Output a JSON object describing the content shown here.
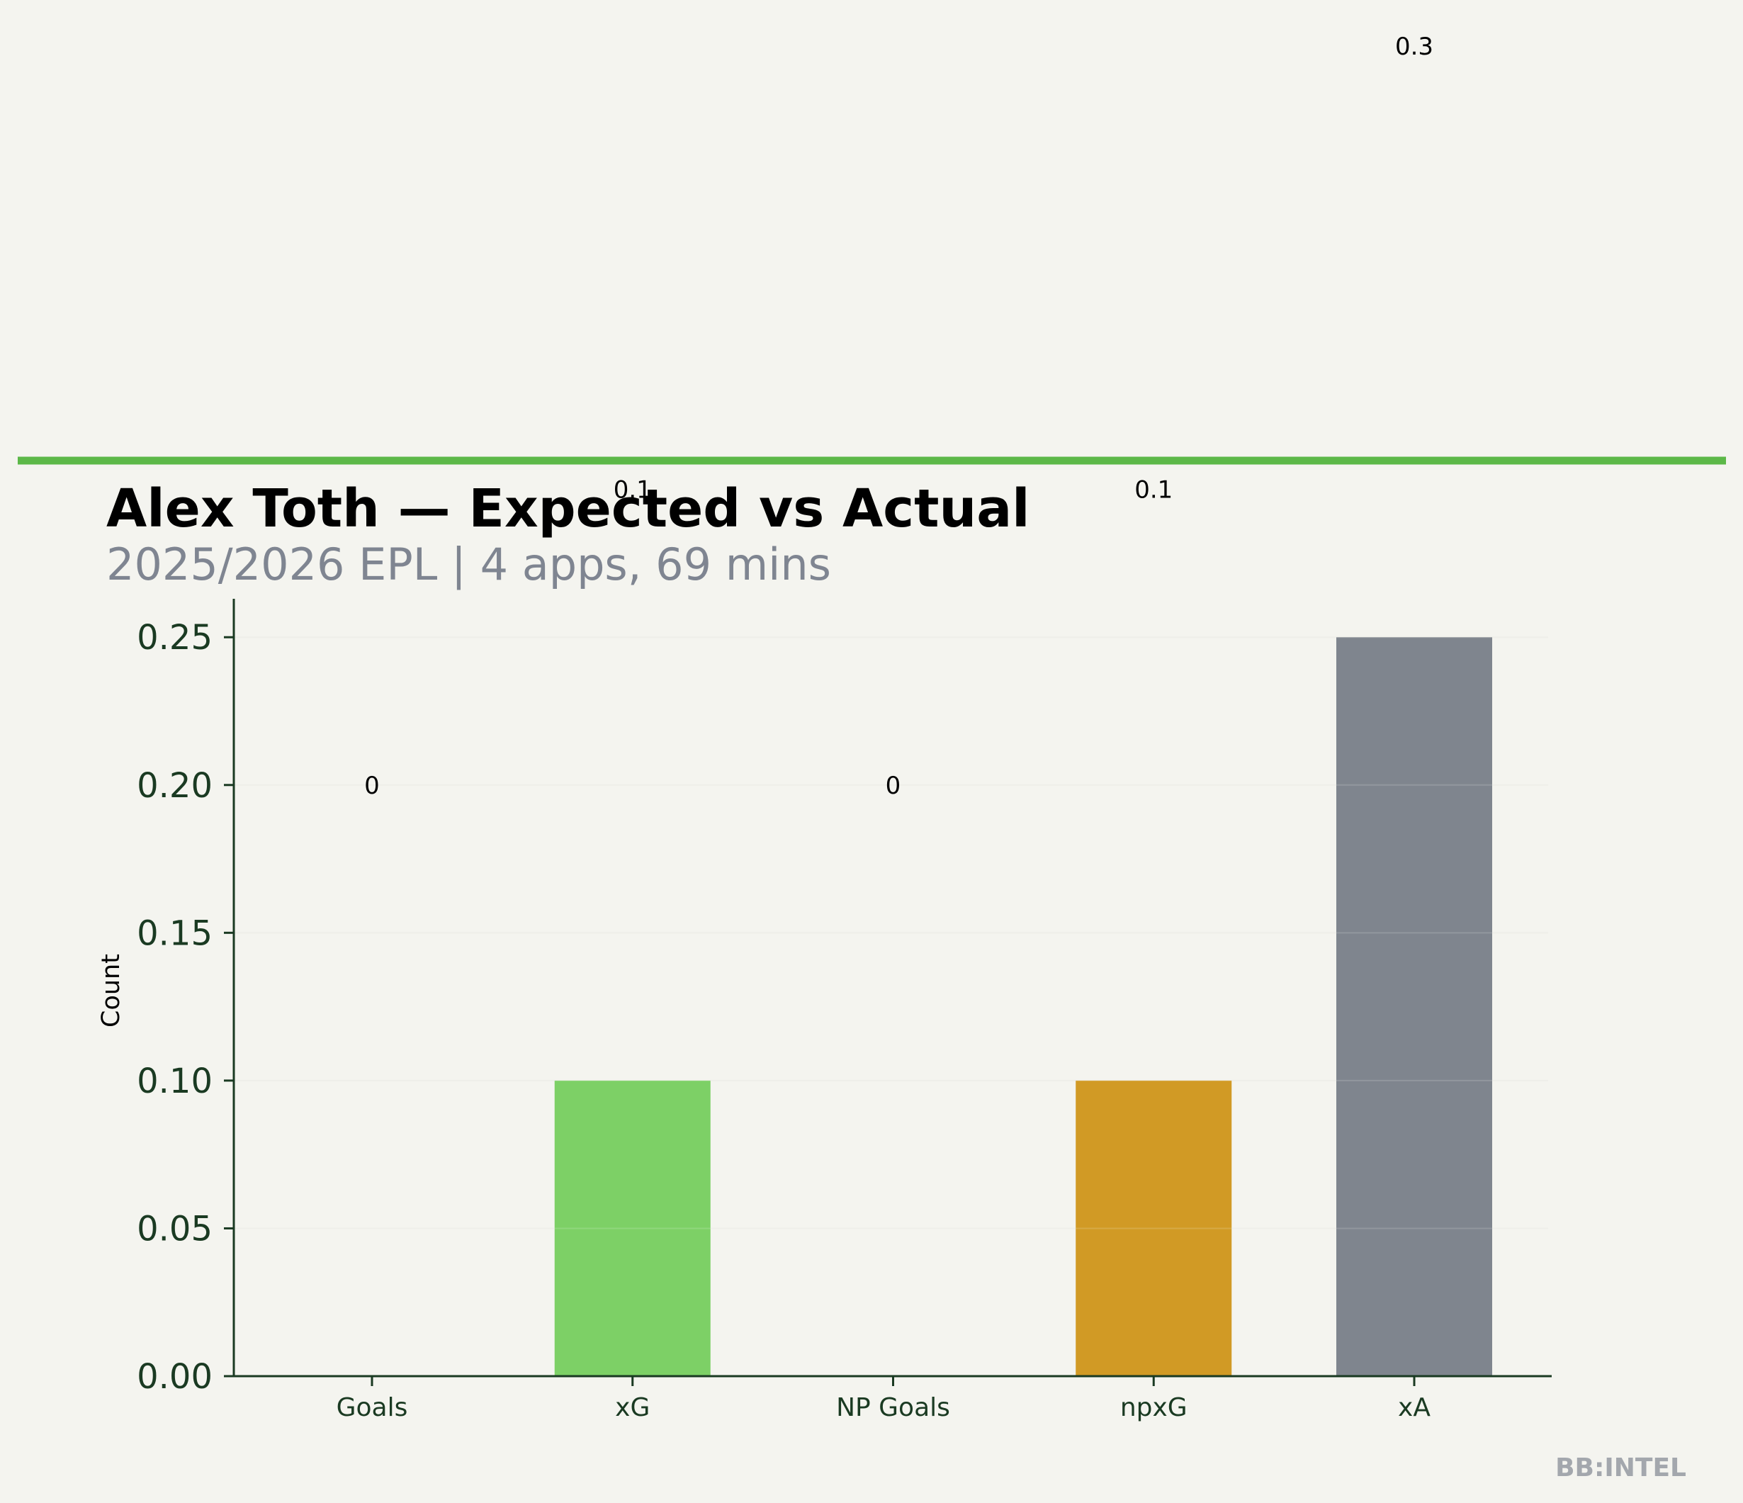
{
  "colors": {
    "background": "#f4f4ef",
    "accent_line": "#5cb848",
    "axis": "#1a3a22",
    "subtitle": "#7f8591",
    "brand": "#a3a7ad",
    "grid": "#ecece5"
  },
  "chart_data": {
    "type": "bar",
    "title": "Alex Toth — Expected vs Actual",
    "subtitle": "2025/2026 EPL | 4 apps, 69 mins",
    "xlabel": "",
    "ylabel": "Count",
    "ylim": [
      0,
      0.263
    ],
    "yticks": [
      "0.00",
      "0.05",
      "0.10",
      "0.15",
      "0.20",
      "0.25"
    ],
    "grid": true,
    "categories": [
      "Goals",
      "xG",
      "NP Goals",
      "npxG",
      "xA"
    ],
    "values": [
      0,
      0.1,
      0,
      0.1,
      0.25
    ],
    "bar_colors": [
      "#7dd066",
      "#7dd066",
      "#d19a25",
      "#d19a25",
      "#7f858e"
    ],
    "data_labels": [
      "0",
      "0.1",
      "0",
      "0.1",
      "0.3"
    ],
    "data_label_values": [
      0.2,
      0.3,
      0.2,
      0.3,
      0.45
    ]
  },
  "footer": {
    "brand": "BB:INTEL"
  }
}
